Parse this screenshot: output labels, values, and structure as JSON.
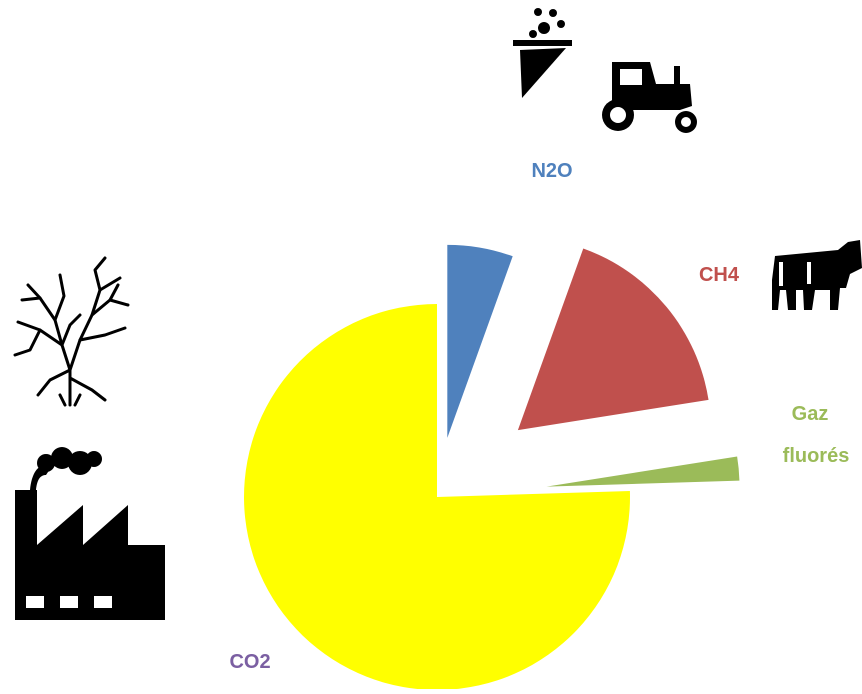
{
  "chart_data": {
    "type": "pie",
    "title": "",
    "exploded": true,
    "slices": [
      {
        "label": "CO2",
        "value": 75.5,
        "color": "#FFFF00",
        "label_color": "#7B5FA2"
      },
      {
        "label": "N2O",
        "value": 5.5,
        "color": "#4F81BD",
        "label_color": "#4F81BD"
      },
      {
        "label": "CH4",
        "value": 17,
        "color": "#C0504D",
        "label_color": "#C0504D"
      },
      {
        "label": "Gaz fluorés",
        "value": 2,
        "color": "#9BBB59",
        "label_color": "#9BBB59"
      }
    ]
  },
  "icons": [
    {
      "name": "dead-tree-icon",
      "near": "CO2"
    },
    {
      "name": "factory-icon",
      "near": "CO2"
    },
    {
      "name": "fertilizer-icon",
      "near": "N2O"
    },
    {
      "name": "tractor-icon",
      "near": "N2O"
    },
    {
      "name": "cow-icon",
      "near": "CH4"
    }
  ]
}
